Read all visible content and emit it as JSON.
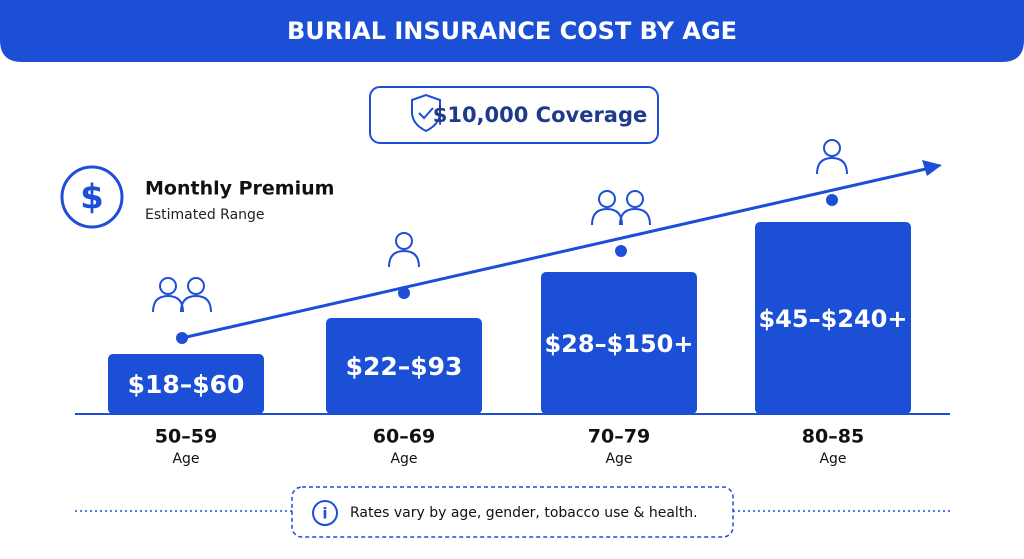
{
  "header": {
    "title": "BURIAL INSURANCE COST BY AGE"
  },
  "coverage": "$10,000 Coverage",
  "legend": {
    "title": "Monthly Premium",
    "subtitle": "Estimated Range"
  },
  "groups": [
    {
      "price": "$18–$60",
      "age": "50–59",
      "unit": "Age"
    },
    {
      "price": "$22–$93",
      "age": "60–69",
      "unit": "Age"
    },
    {
      "price": "$28–$150+",
      "age": "70–79",
      "unit": "Age"
    },
    {
      "price": "$45–$240+",
      "age": "80–85",
      "unit": "Age"
    }
  ],
  "note": "Rates vary by age, gender, tobacco use & health."
}
